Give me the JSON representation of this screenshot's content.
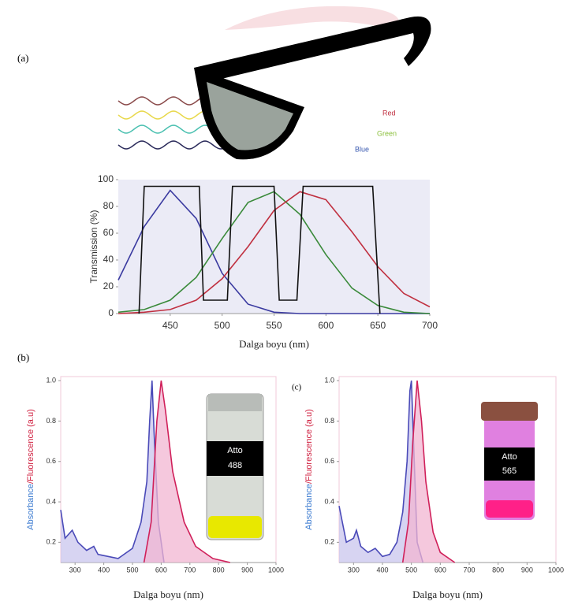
{
  "panel_labels": [
    "(a)",
    "(b)",
    "(c)"
  ],
  "glasses": {
    "labels": [
      "Red",
      "Green",
      "Blue"
    ]
  },
  "chart_data": [
    {
      "type": "line",
      "ylabel": "Transmission (%)",
      "xlabel": "Dalga boyu (nm)",
      "xlim": [
        400,
        700
      ],
      "ylim": [
        0,
        100
      ],
      "xticks": [
        450,
        500,
        550,
        600,
        650,
        700
      ],
      "yticks": [
        0,
        20,
        40,
        60,
        80,
        100
      ],
      "background": "#ebebf6",
      "series": [
        {
          "color": "#3a3aa0",
          "x": [
            400,
            425,
            450,
            475,
            500,
            525,
            550,
            575,
            600,
            625,
            650,
            675,
            700
          ],
          "values": [
            25,
            65,
            92,
            71,
            30,
            7,
            1,
            0,
            0,
            0,
            0,
            0,
            0
          ]
        },
        {
          "color": "#3a8a3a",
          "x": [
            400,
            425,
            450,
            475,
            500,
            525,
            550,
            575,
            600,
            625,
            650,
            675,
            700
          ],
          "values": [
            1,
            3,
            10,
            27,
            56,
            83,
            91,
            74,
            44,
            19,
            6,
            1,
            0
          ]
        },
        {
          "color": "#c03040",
          "x": [
            400,
            425,
            450,
            475,
            500,
            525,
            550,
            575,
            600,
            625,
            650,
            675,
            700
          ],
          "values": [
            0,
            1,
            3,
            10,
            26,
            50,
            77,
            91,
            85,
            61,
            35,
            15,
            5
          ]
        },
        {
          "color": "#111111",
          "x": [
            420,
            425,
            478,
            482,
            505,
            510,
            550,
            555,
            572,
            578,
            645,
            652
          ],
          "values": [
            0,
            95,
            95,
            10,
            10,
            95,
            95,
            10,
            10,
            95,
            95,
            0
          ]
        }
      ]
    },
    {
      "type": "area",
      "ylabel_parts": [
        "Absorbance",
        "/Fluorescence (a.u)"
      ],
      "xlabel": "Dalga boyu (nm)",
      "xlim": [
        250,
        1000
      ],
      "ylim": [
        0.1,
        1.02
      ],
      "xticks": [
        300,
        400,
        500,
        600,
        700,
        800,
        900,
        1000
      ],
      "yticks": [
        0.2,
        0.4,
        0.6,
        0.8,
        {
          "value": 1,
          "label": "1.0"
        }
      ],
      "inset_label": [
        "Atto",
        "488"
      ],
      "series": [
        {
          "color": "#4a4ab8",
          "fill": "#c9c6ee",
          "x": [
            250,
            265,
            290,
            310,
            340,
            365,
            380,
            450,
            500,
            530,
            550,
            560,
            568,
            575,
            590,
            610
          ],
          "values": [
            0.36,
            0.22,
            0.26,
            0.2,
            0.16,
            0.18,
            0.14,
            0.12,
            0.17,
            0.3,
            0.5,
            0.8,
            1.0,
            0.75,
            0.3,
            0.1
          ]
        },
        {
          "color": "#d0205a",
          "fill": "#f2b6d2",
          "x": [
            540,
            565,
            585,
            600,
            615,
            640,
            680,
            720,
            780,
            840
          ],
          "values": [
            0.1,
            0.3,
            0.8,
            1.0,
            0.85,
            0.55,
            0.3,
            0.18,
            0.12,
            0.1
          ]
        }
      ]
    },
    {
      "type": "area",
      "ylabel_parts": [
        "Absorbance",
        "/Fluorescence (a.u)"
      ],
      "xlabel": "Dalga boyu (nm)",
      "xlim": [
        250,
        1000
      ],
      "ylim": [
        0.1,
        1.02
      ],
      "xticks": [
        300,
        400,
        500,
        600,
        700,
        800,
        900,
        1000
      ],
      "yticks": [
        0.2,
        0.4,
        0.6,
        0.8,
        {
          "value": 1,
          "label": "1.0"
        }
      ],
      "inset_label": [
        "Atto",
        "565"
      ],
      "series": [
        {
          "color": "#4a4ab8",
          "fill": "#c9c6ee",
          "x": [
            250,
            275,
            300,
            310,
            325,
            350,
            375,
            400,
            425,
            450,
            470,
            485,
            495,
            500,
            510,
            520,
            540
          ],
          "values": [
            0.38,
            0.2,
            0.22,
            0.26,
            0.18,
            0.15,
            0.17,
            0.13,
            0.14,
            0.2,
            0.35,
            0.6,
            0.95,
            1.0,
            0.6,
            0.2,
            0.1
          ]
        },
        {
          "color": "#d0205a",
          "fill": "#f2b6d2",
          "x": [
            470,
            490,
            505,
            520,
            535,
            550,
            575,
            600,
            650
          ],
          "values": [
            0.1,
            0.3,
            0.7,
            1.0,
            0.8,
            0.5,
            0.25,
            0.15,
            0.1
          ]
        }
      ]
    }
  ]
}
